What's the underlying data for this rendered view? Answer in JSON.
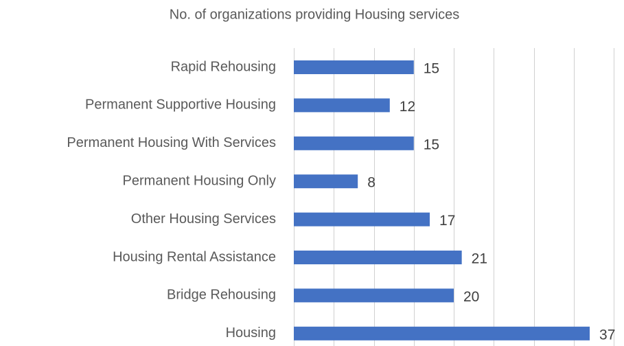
{
  "chart_data": {
    "type": "bar",
    "orientation": "horizontal",
    "title": "No. of organizations providing Housing services",
    "categories": [
      "Rapid Rehousing",
      "Permanent Supportive Housing",
      "Permanent Housing With Services",
      "Permanent Housing Only",
      "Other Housing Services",
      "Housing Rental Assistance",
      "Bridge Rehousing",
      "Housing"
    ],
    "values": [
      15,
      12,
      15,
      8,
      17,
      21,
      20,
      37
    ],
    "color": "#4472c4",
    "xlim": [
      0,
      40
    ],
    "xticks": [
      0,
      5,
      10,
      15,
      20,
      25,
      30,
      35,
      40
    ],
    "grid": true
  }
}
